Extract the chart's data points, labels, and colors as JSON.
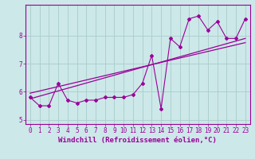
{
  "title": "",
  "xlabel": "Windchill (Refroidissement éolien,°C)",
  "ylabel": "",
  "bg_color": "#cce8e8",
  "line_color": "#990099",
  "grid_color": "#aacccc",
  "x_data": [
    0,
    1,
    2,
    3,
    4,
    5,
    6,
    7,
    8,
    9,
    10,
    11,
    12,
    13,
    14,
    15,
    16,
    17,
    18,
    19,
    20,
    21,
    22,
    23
  ],
  "y_data": [
    5.8,
    5.5,
    5.5,
    6.3,
    5.7,
    5.6,
    5.7,
    5.7,
    5.8,
    5.8,
    5.8,
    5.9,
    6.3,
    7.3,
    5.4,
    7.9,
    7.6,
    8.6,
    8.7,
    8.2,
    8.5,
    7.9,
    7.9,
    8.6
  ],
  "trend1_x": [
    0,
    23
  ],
  "trend1_y": [
    5.95,
    7.75
  ],
  "trend2_x": [
    0,
    23
  ],
  "trend2_y": [
    5.75,
    7.9
  ],
  "xlim": [
    -0.5,
    23.5
  ],
  "ylim": [
    4.85,
    9.1
  ],
  "yticks": [
    5,
    6,
    7,
    8
  ],
  "xticks": [
    0,
    1,
    2,
    3,
    4,
    5,
    6,
    7,
    8,
    9,
    10,
    11,
    12,
    13,
    14,
    15,
    16,
    17,
    18,
    19,
    20,
    21,
    22,
    23
  ],
  "tick_fontsize": 5.5,
  "xlabel_fontsize": 6.5
}
